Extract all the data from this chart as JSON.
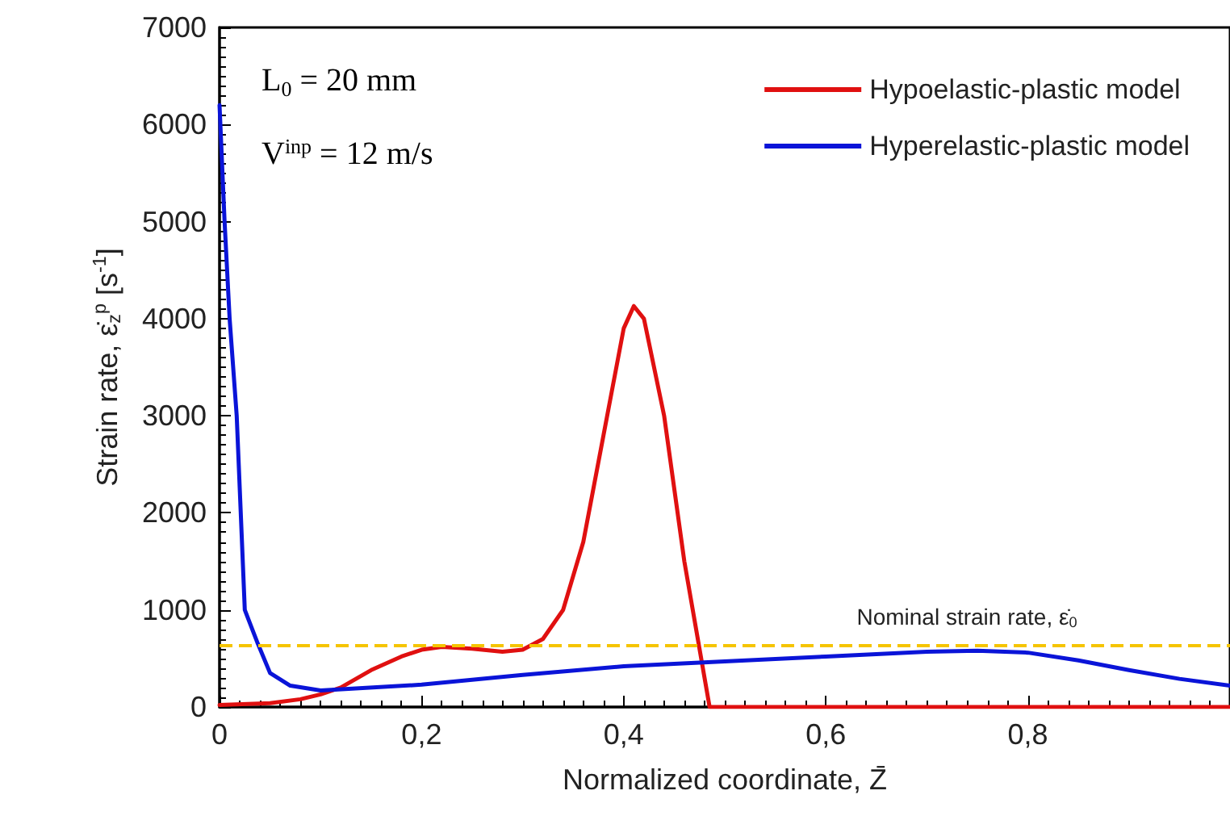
{
  "chart_data": {
    "type": "line",
    "xlabel": "Normalized coordinate, Z̄",
    "ylabel": "Strain rate, ε̇$_{z}$$^{p}$ [s$^{-1}$]",
    "annotations": [
      "L$_{0}$ = 20 mm",
      "V$^{inp}$ = 12 m/s"
    ],
    "xlim": [
      0,
      1
    ],
    "xticks": [
      0,
      {
        "value": 0.2,
        "label": "0,2"
      },
      {
        "value": 0.4,
        "label": "0,4"
      },
      {
        "value": 0.6,
        "label": "0,6"
      },
      {
        "value": 0.8,
        "label": "0,8"
      }
    ],
    "ylim": [
      0,
      7000
    ],
    "yticks": [
      0,
      1000,
      2000,
      3000,
      4000,
      5000,
      6000,
      7000
    ],
    "grid": false,
    "legend": "top right",
    "marker": "none",
    "line_style": "solid",
    "ref_lines": [
      {
        "axis": "y",
        "value": 630,
        "label": "Nominal strain rate, ε̇$_{0}$",
        "color": "#f5c400",
        "line_style": "dashed"
      }
    ],
    "series": [
      {
        "name": "Hypoelastic-plastic model",
        "color": "#e01010",
        "x": [
          0,
          0.05,
          0.08,
          0.1,
          0.12,
          0.15,
          0.18,
          0.2,
          0.22,
          0.25,
          0.28,
          0.3,
          0.32,
          0.34,
          0.36,
          0.38,
          0.4,
          0.41,
          0.42,
          0.44,
          0.46,
          0.47,
          0.485,
          0.6,
          0.8,
          1
        ],
        "values": [
          20,
          40,
          80,
          130,
          200,
          380,
          520,
          590,
          620,
          600,
          570,
          590,
          700,
          1000,
          1700,
          2800,
          3900,
          4130,
          4000,
          3000,
          1500,
          900,
          0,
          0,
          0,
          0
        ]
      },
      {
        "name": "Hyperelastic-plastic model",
        "color": "#0a14d8",
        "x": [
          0,
          0.005,
          0.01,
          0.017,
          0.025,
          0.038,
          0.05,
          0.07,
          0.1,
          0.2,
          0.3,
          0.4,
          0.5,
          0.6,
          0.7,
          0.75,
          0.8,
          0.85,
          0.9,
          0.95,
          1
        ],
        "values": [
          6200,
          5000,
          4000,
          3000,
          1000,
          650,
          350,
          220,
          170,
          230,
          330,
          420,
          470,
          520,
          570,
          580,
          560,
          480,
          380,
          290,
          220
        ]
      }
    ]
  }
}
